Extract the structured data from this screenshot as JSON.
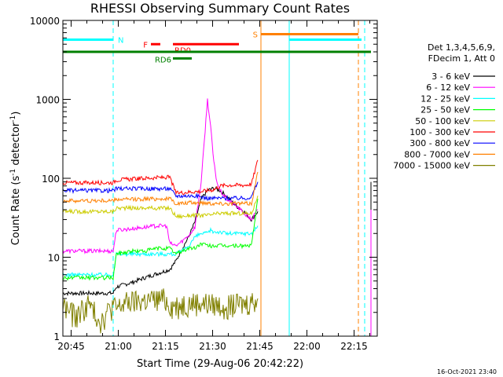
{
  "chart_data": {
    "type": "line",
    "title": "RHESSI Observing Summary Count Rates",
    "xlabel": "Start Time (29-Aug-06 20:42:22)",
    "ylabel_main": "Count Rate (s",
    "ylabel_sup1": "-1",
    "ylabel_mid": " detector",
    "ylabel_sup2": "-1",
    "ylabel_end": ")",
    "x_ticks": [
      "20:45",
      "21:00",
      "21:15",
      "21:30",
      "21:45",
      "22:00",
      "22:15"
    ],
    "x_tick_minutes": [
      2.63,
      17.63,
      32.63,
      47.63,
      62.63,
      77.63,
      92.63
    ],
    "xlim_minutes": [
      0,
      100
    ],
    "y_scale": "log",
    "ylim": [
      1,
      10000
    ],
    "y_ticks": [
      1,
      10,
      100,
      1000,
      10000
    ],
    "y_tick_labels": [
      "1",
      "10",
      "100",
      "1000",
      "10000"
    ],
    "legend_header": [
      "Det 1,3,4,5,6,9,",
      "FDecim 1, Att 0"
    ],
    "series": [
      {
        "name": "3 - 6 keV",
        "color": "#000000",
        "x": [
          0,
          16,
          17,
          22,
          26,
          30,
          34,
          36,
          38,
          40,
          42,
          44,
          46,
          48,
          50,
          52,
          55,
          57,
          60,
          62
        ],
        "y": [
          3.5,
          3.5,
          4.2,
          4.8,
          5.5,
          6.2,
          7,
          9,
          13,
          18,
          28,
          55,
          70,
          75,
          70,
          60,
          45,
          40,
          30,
          38
        ]
      },
      {
        "name": "6 - 12 keV",
        "color": "#ff00ff",
        "x": [
          0,
          16,
          17,
          22,
          26,
          30,
          33,
          34,
          36,
          38,
          40,
          42,
          44,
          45,
          46,
          47,
          48,
          49,
          50,
          52,
          55,
          58,
          60,
          62
        ],
        "y": [
          12,
          12,
          22,
          23,
          24,
          25,
          25,
          15,
          14,
          16,
          19,
          24,
          90,
          300,
          1000,
          450,
          160,
          90,
          70,
          55,
          45,
          35,
          30,
          40
        ]
      },
      {
        "name": "12 - 25 keV",
        "color": "#00ffff",
        "x": [
          0,
          16,
          17,
          22,
          26,
          30,
          34,
          36,
          38,
          40,
          42,
          44,
          46,
          47,
          48,
          50,
          52,
          55,
          58,
          60,
          62
        ],
        "y": [
          6,
          6,
          11,
          11,
          11,
          11,
          11,
          11,
          12,
          14,
          18,
          20,
          20,
          22,
          21,
          21,
          20,
          20,
          20,
          20,
          25
        ]
      },
      {
        "name": "25 - 50 keV",
        "color": "#00ff00",
        "x": [
          0,
          16,
          17,
          22,
          26,
          30,
          34,
          36,
          38,
          40,
          42,
          44,
          46,
          48,
          50,
          52,
          55,
          58,
          60,
          62
        ],
        "y": [
          5.5,
          5.5,
          11,
          12,
          12,
          13,
          13,
          11,
          12,
          13,
          13,
          15,
          14,
          14,
          14,
          14,
          14,
          14,
          14,
          55
        ]
      },
      {
        "name": "50 - 100 keV",
        "color": "#cccc00",
        "x": [
          0,
          16,
          17,
          22,
          26,
          30,
          34,
          36,
          38,
          40,
          42,
          44,
          46,
          48,
          50,
          52,
          55,
          58,
          60,
          62
        ],
        "y": [
          38,
          38,
          42,
          42,
          42,
          42,
          42,
          33,
          33,
          34,
          34,
          34,
          34,
          35,
          36,
          36,
          36,
          36,
          36,
          60
        ]
      },
      {
        "name": "100 - 300 keV",
        "color": "#ff0000",
        "x": [
          0,
          16,
          17,
          22,
          26,
          30,
          34,
          36,
          38,
          40,
          42,
          44,
          46,
          48,
          50,
          52,
          55,
          58,
          60,
          62
        ],
        "y": [
          88,
          88,
          95,
          98,
          100,
          102,
          103,
          65,
          66,
          67,
          68,
          68,
          70,
          72,
          80,
          82,
          82,
          82,
          85,
          170
        ]
      },
      {
        "name": "300 - 800 keV",
        "color": "#0000ff",
        "x": [
          0,
          16,
          17,
          22,
          26,
          30,
          34,
          36,
          38,
          40,
          42,
          44,
          46,
          48,
          50,
          52,
          55,
          58,
          60,
          62
        ],
        "y": [
          70,
          70,
          74,
          74,
          74,
          74,
          74,
          60,
          60,
          60,
          60,
          58,
          56,
          56,
          56,
          56,
          56,
          56,
          58,
          90
        ]
      },
      {
        "name": "800 - 7000 keV",
        "color": "#ff8000",
        "x": [
          0,
          16,
          17,
          22,
          26,
          30,
          34,
          36,
          38,
          40,
          42,
          44,
          46,
          48,
          50,
          52,
          55,
          58,
          60,
          62
        ],
        "y": [
          52,
          52,
          54,
          54,
          55,
          55,
          55,
          48,
          48,
          49,
          49,
          49,
          49,
          48,
          48,
          48,
          48,
          48,
          48,
          120
        ]
      },
      {
        "name": "7000 - 15000 keV",
        "color": "#808000",
        "x": [
          0,
          4,
          8,
          12,
          16,
          17,
          20,
          24,
          28,
          32,
          35,
          38,
          42,
          46,
          50,
          54,
          58,
          62
        ],
        "y": [
          2.5,
          1.8,
          2.6,
          1.6,
          2.5,
          2.2,
          2.7,
          2.8,
          2.9,
          3.0,
          2.4,
          2.6,
          2.7,
          2.6,
          2.5,
          2.5,
          2.6,
          3.0
        ]
      }
    ],
    "late_segments": [
      {
        "color": "#000000",
        "x": [
          98,
          98
        ],
        "y": [
          1,
          90
        ]
      },
      {
        "color": "#ff00ff",
        "x": [
          98,
          98
        ],
        "y": [
          1,
          40
        ]
      }
    ],
    "flag_bars": [
      {
        "label": "N",
        "color": "#00ffff",
        "x0": 0,
        "x1": 16,
        "y": 5700
      },
      {
        "label": "",
        "color": "#00ffff",
        "x0": 72,
        "x1": 95,
        "y": 5700
      },
      {
        "label": "S",
        "color": "#ff8000",
        "x0": 63,
        "x1": 94,
        "y": 6700
      },
      {
        "label": "F",
        "color": "#ff0000",
        "x0": 28,
        "x1": 31,
        "y": 5000
      },
      {
        "label": "RD0",
        "color": "#ff0000",
        "x0": 35,
        "x1": 56,
        "y": 5000
      },
      {
        "label": "",
        "color": "#008000",
        "x0": 0,
        "x1": 98,
        "y": 4000
      },
      {
        "label": "RD6",
        "color": "#008000",
        "x0": 35,
        "x1": 41,
        "y": 3300
      }
    ],
    "vertical_markers": [
      {
        "color": "#00ffff",
        "x": 0,
        "style": "solid"
      },
      {
        "color": "#00ffff",
        "x": 16,
        "style": "dashed"
      },
      {
        "color": "#ff8000",
        "x": 63,
        "style": "solid"
      },
      {
        "color": "#00ffff",
        "x": 72,
        "style": "solid"
      },
      {
        "color": "#ff8000",
        "x": 94,
        "style": "dashed"
      },
      {
        "color": "#00ffff",
        "x": 96,
        "style": "dashed"
      }
    ],
    "grid": false,
    "legend_position": "right"
  },
  "footer": {
    "date": "16-Oct-2021 23:40"
  }
}
